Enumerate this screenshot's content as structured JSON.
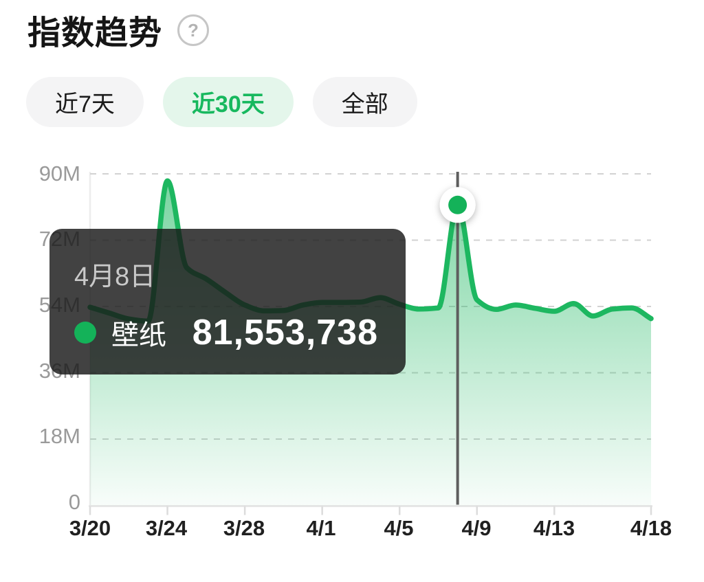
{
  "header": {
    "title": "指数趋势",
    "help_glyph": "?"
  },
  "tabs": [
    {
      "label": "近7天",
      "active": false
    },
    {
      "label": "近30天",
      "active": true
    },
    {
      "label": "全部",
      "active": false
    }
  ],
  "chart_data": {
    "type": "area",
    "title": "指数趋势",
    "values_unit": "millions",
    "x": [
      "3/20",
      "3/21",
      "3/22",
      "3/23",
      "3/24",
      "3/25",
      "3/26",
      "3/27",
      "3/28",
      "3/29",
      "3/30",
      "3/31",
      "4/1",
      "4/2",
      "4/3",
      "4/4",
      "4/5",
      "4/6",
      "4/7",
      "4/8",
      "4/9",
      "4/10",
      "4/11",
      "4/12",
      "4/13",
      "4/14",
      "4/15",
      "4/16",
      "4/17",
      "4/18"
    ],
    "series": [
      {
        "name": "壁纸",
        "values": [
          53.8,
          52.2,
          50.6,
          50.0,
          88.1,
          64.5,
          61.5,
          57.8,
          54.4,
          52.8,
          52.9,
          54.4,
          55.1,
          55.1,
          55.2,
          56.4,
          54.6,
          53.3,
          53.6,
          81.55,
          55.8,
          53.2,
          54.4,
          53.5,
          52.7,
          54.8,
          51.4,
          53.3,
          53.6,
          50.7
        ]
      }
    ],
    "ylim": [
      0,
      90
    ],
    "y_ticks": [
      "90M",
      "72M",
      "54M",
      "36M",
      "18M",
      "0"
    ],
    "y_tick_values": [
      90,
      72,
      54,
      36,
      18,
      0
    ],
    "x_tick_labels": [
      "3/20",
      "3/24",
      "3/28",
      "4/1",
      "4/5",
      "4/9",
      "4/13",
      "4/18"
    ],
    "x_tick_indexes": [
      0,
      4,
      8,
      12,
      16,
      20,
      24,
      29
    ],
    "grid": "dashed-horizontal",
    "legend_position": "none",
    "highlight": {
      "index": 19,
      "date": "4月8日",
      "series": "壁纸",
      "value": 81553738,
      "value_display": "81,553,738"
    },
    "colors": {
      "line": "#1db760",
      "marker": "#14b259",
      "indicator": "#5e5e5e",
      "area_top": "rgba(29,183,96,0.60)",
      "area_bottom": "rgba(29,183,96,0.03)",
      "grid": "#d2d2d2",
      "axis": "#e6e6e6",
      "active_tab_bg": "#e4f6eb",
      "active_tab_text": "#17b85e"
    }
  }
}
